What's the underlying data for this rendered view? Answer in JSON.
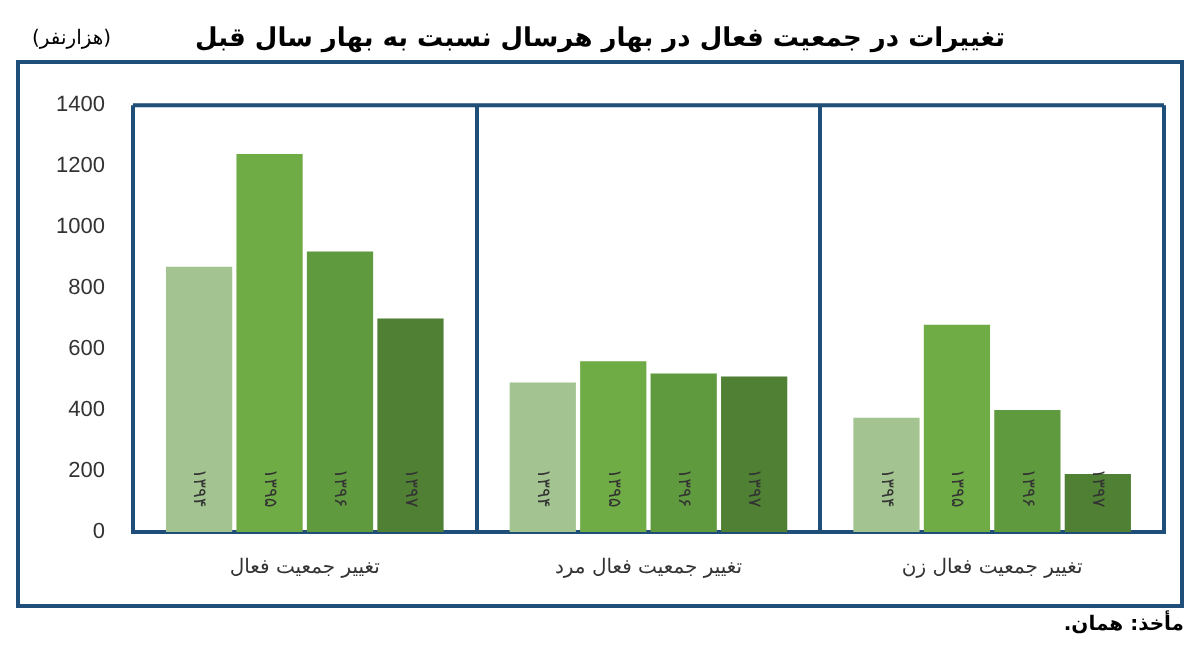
{
  "chart_data": {
    "type": "bar",
    "title": "تغییرات در جمعیت فعال در بهار هرسال نسبت به بهار سال قبل",
    "ylabel": "(هزارنفر)",
    "categories": [
      "تغییر جمعیت فعال",
      "تغییر جمعیت فعال مرد",
      "تغییر جمعیت فعال زن"
    ],
    "series": [
      {
        "name": "۱۳۹۴",
        "color": "#a3c491",
        "values": [
          870,
          490,
          375
        ]
      },
      {
        "name": "۱۳۹۵",
        "color": "#6fac46",
        "values": [
          1240,
          560,
          680
        ]
      },
      {
        "name": "۱۳۹۶",
        "color": "#5f9a3f",
        "values": [
          920,
          520,
          400
        ]
      },
      {
        "name": "۱۳۹۷",
        "color": "#4f8034",
        "values": [
          700,
          510,
          190
        ]
      }
    ],
    "ylim": [
      0,
      1400
    ],
    "yticks": [
      0,
      200,
      400,
      600,
      800,
      1000,
      1200,
      1400
    ],
    "grid": "x",
    "legend": false,
    "annotations": [
      "مأخذ: همان."
    ]
  }
}
